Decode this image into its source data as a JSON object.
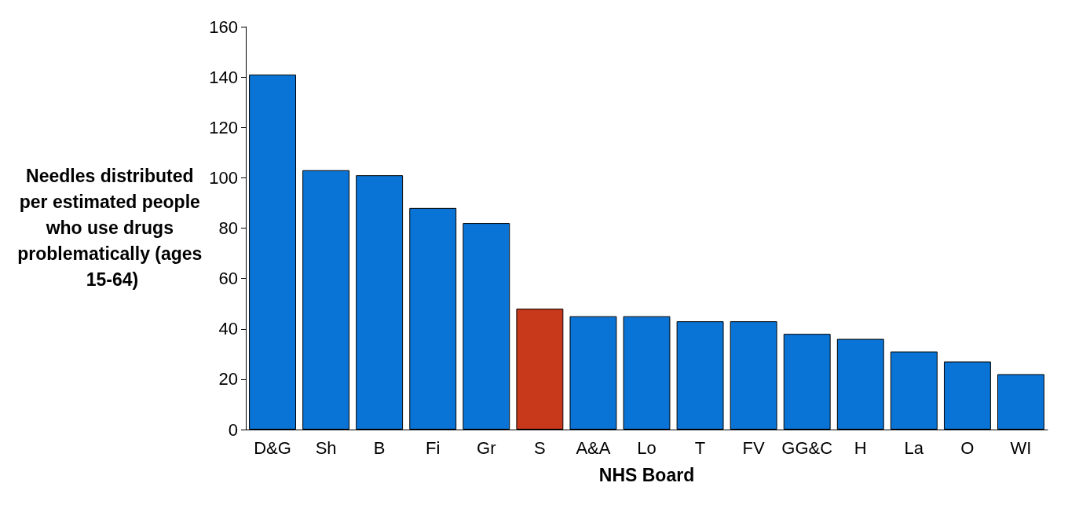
{
  "chart_data": {
    "type": "bar",
    "xlabel": "NHS Board",
    "ylabel": "Needles distributed per estimated people who use drugs problematically (ages 15-64)",
    "categories": [
      "D&G",
      "Sh",
      "B",
      "Fi",
      "Gr",
      "S",
      "A&A",
      "Lo",
      "T",
      "FV",
      "GG&C",
      "H",
      "La",
      "O",
      "WI"
    ],
    "values": [
      141,
      103,
      101,
      88,
      82,
      48,
      45,
      45,
      43,
      43,
      38,
      36,
      31,
      27,
      22
    ],
    "colors": [
      "#0a74d6",
      "#0a74d6",
      "#0a74d6",
      "#0a74d6",
      "#0a74d6",
      "#c8381a",
      "#0a74d6",
      "#0a74d6",
      "#0a74d6",
      "#0a74d6",
      "#0a74d6",
      "#0a74d6",
      "#0a74d6",
      "#0a74d6",
      "#0a74d6"
    ],
    "ylim": [
      0,
      160
    ],
    "yticks": [
      0,
      20,
      40,
      60,
      80,
      100,
      120,
      140,
      160
    ],
    "grid": false
  }
}
